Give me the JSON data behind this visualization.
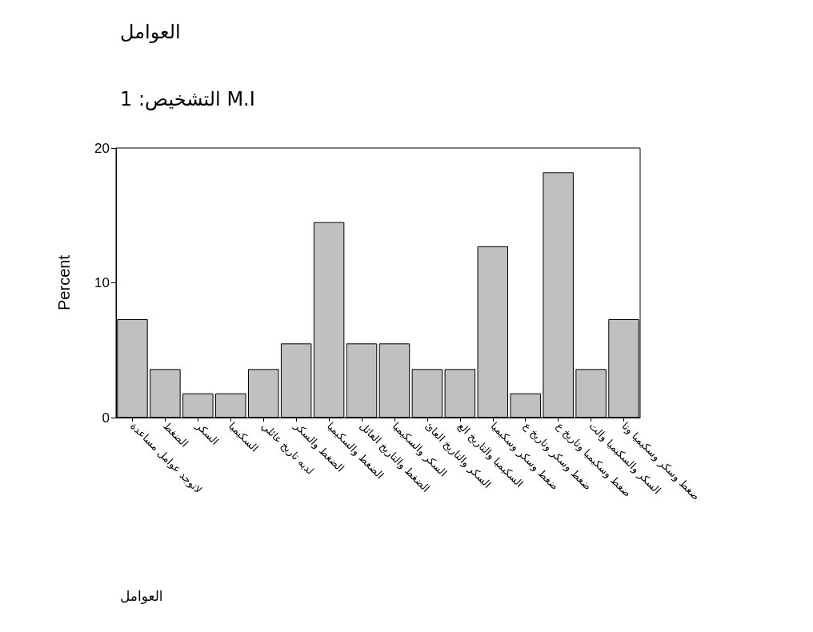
{
  "chart_data": {
    "type": "bar",
    "title": "العوامل",
    "subtitle": "M.I التشخيص: 1",
    "annotations": [
      "العوامل"
    ],
    "ylabel": "Percent",
    "categories": [
      "لاتوجد عوامل مساعدة",
      "الضغط",
      "السكر",
      "السكيميا",
      "لديه تاريخ عائلي",
      "الضغط والسكر",
      "الضغط والسكيميا",
      "الضغط والتاريخ العائل",
      "السكر والسكيميا",
      "السكر والتاريخ العائ",
      "السكيميا والتاريخ الع",
      "ضغط وسكر وسكيميا",
      "ضغط وسكر وتاريخ ع",
      "ضغط وسكيميا وتاريخ ع",
      "السكر والسكيميا والت",
      "ضغط وسكر وسكيميا وتا"
    ],
    "values": [
      7.3,
      3.6,
      1.8,
      1.8,
      3.6,
      5.5,
      14.5,
      5.5,
      5.5,
      3.6,
      3.6,
      12.7,
      1.8,
      18.2,
      3.6,
      7.3
    ],
    "color": "#c0c0c0",
    "ylim": [
      0,
      20
    ],
    "yticks": [
      0,
      10,
      20
    ],
    "grid": false
  }
}
